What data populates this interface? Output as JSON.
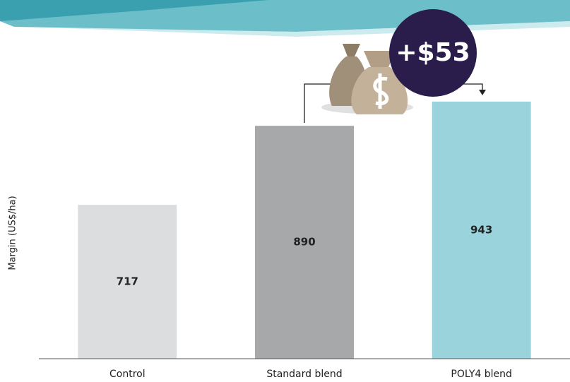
{
  "chart_data": {
    "type": "bar",
    "y_label": "Margin (US$/ha)",
    "annotation": "+$53",
    "categories": [
      "Control",
      "Standard blend",
      "POLY4 blend"
    ],
    "values": [
      717,
      890,
      943
    ],
    "colors": [
      "#dcdddf",
      "#a7a8aa",
      "#9ad3dc"
    ],
    "ylim": [
      380,
      1150
    ]
  }
}
